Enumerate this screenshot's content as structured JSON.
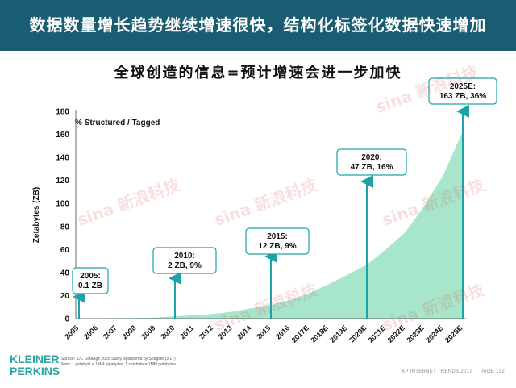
{
  "header": {
    "title": "数据数量增长趋势继续增速很快，结构化标签化数据快速增加"
  },
  "subtitle": "全球创造的信息=预计增速会进一步加快",
  "logo": {
    "line1": "KLEINER",
    "line2": "PERKINS"
  },
  "source": {
    "line1": "Source: IDC DataAge 2025 Study, sponsored by Seagate (3/17)",
    "line2": "Note: 1 petabyte = 1MM gigabytes, 1 zetabyte = 1MM petabytes"
  },
  "footer": {
    "left": "KP INTERNET TRENDS 2017",
    "right": "PAGE 132"
  },
  "watermark": {
    "text": "sina 新浪科技"
  },
  "colors": {
    "header_bg": "#1a5d72",
    "area": "#a8e6cb",
    "accent": "#2aa5a0",
    "arrow": "#1aa3a8"
  },
  "chart_data": {
    "type": "area",
    "ylabel": "Zetabytes (ZB)",
    "series_label": "% Structured / Tagged",
    "ylim": [
      0,
      180
    ],
    "yticks": [
      0,
      20,
      40,
      60,
      80,
      100,
      120,
      140,
      160,
      180
    ],
    "categories": [
      "2005",
      "2006",
      "2007",
      "2008",
      "2009",
      "2010",
      "2011",
      "2012",
      "2013",
      "2014",
      "2015",
      "2016",
      "2017E",
      "2018E",
      "2019E",
      "2020E",
      "2021E",
      "2022E",
      "2023E",
      "2024E",
      "2025E"
    ],
    "values": [
      0.1,
      0.2,
      0.4,
      0.6,
      1,
      2,
      3,
      4,
      6,
      9,
      12,
      16,
      22,
      30,
      38,
      47,
      60,
      75,
      98,
      125,
      163
    ],
    "callouts": [
      {
        "category": "2005",
        "value": 0.1,
        "lines": [
          "2005:",
          "0.1 ZB"
        ]
      },
      {
        "category": "2010",
        "value": 2,
        "lines": [
          "2010:",
          "2 ZB, 9%"
        ]
      },
      {
        "category": "2015",
        "value": 12,
        "lines": [
          "2015:",
          "12 ZB, 9%"
        ]
      },
      {
        "category": "2020E",
        "value": 47,
        "lines": [
          "2020:",
          "47 ZB, 16%"
        ]
      },
      {
        "category": "2025E",
        "value": 163,
        "lines": [
          "2025E:",
          "163 ZB, 36%"
        ]
      }
    ]
  }
}
